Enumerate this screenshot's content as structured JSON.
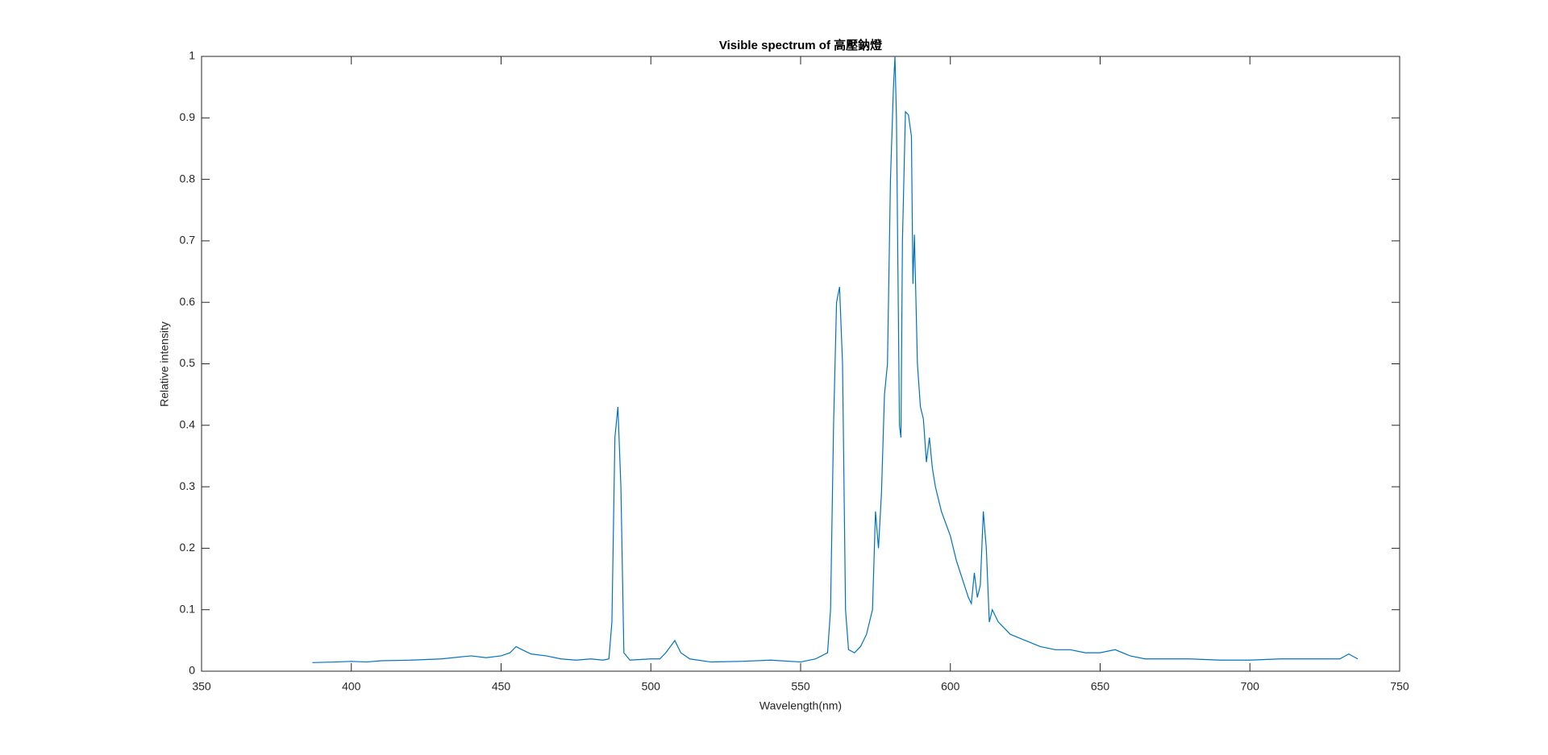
{
  "chart_data": {
    "type": "line",
    "title": "Visible spectrum of 高壓鈉燈",
    "x_label": "Wavelength(nm)",
    "y_label": "Relative intensity",
    "xlim": [
      350,
      750
    ],
    "xticks": [
      350,
      400,
      450,
      500,
      550,
      600,
      650,
      700,
      750
    ],
    "ylim": [
      0,
      1
    ],
    "yticks": [
      0,
      0.1,
      0.2,
      0.3,
      0.4,
      0.5,
      0.6,
      0.7,
      0.8,
      0.9,
      1
    ],
    "grid": false,
    "x": [
      387,
      395,
      400,
      405,
      410,
      420,
      430,
      440,
      445,
      450,
      453,
      455,
      457,
      460,
      465,
      470,
      475,
      480,
      484,
      486,
      487,
      488,
      489,
      490,
      491,
      493,
      500,
      503,
      505,
      508,
      510,
      513,
      520,
      530,
      540,
      550,
      555,
      559,
      560,
      561,
      562,
      563,
      564,
      565,
      566,
      568,
      570,
      572,
      574,
      575,
      576,
      577,
      578,
      579,
      580,
      581,
      581.5,
      582,
      583,
      583.5,
      584,
      585,
      586,
      587,
      587.5,
      588,
      589,
      590,
      591,
      592,
      593,
      594,
      595,
      597,
      600,
      602,
      604,
      606,
      607,
      608,
      609,
      610,
      611,
      612,
      613,
      614,
      616,
      620,
      625,
      630,
      635,
      640,
      645,
      650,
      655,
      660,
      665,
      670,
      680,
      690,
      700,
      710,
      720,
      730,
      733,
      736
    ],
    "series": [
      {
        "color": "#0072bd",
        "values": [
          0.014,
          0.015,
          0.016,
          0.015,
          0.017,
          0.018,
          0.02,
          0.025,
          0.022,
          0.025,
          0.03,
          0.04,
          0.035,
          0.028,
          0.025,
          0.02,
          0.018,
          0.02,
          0.018,
          0.02,
          0.08,
          0.38,
          0.43,
          0.3,
          0.03,
          0.018,
          0.02,
          0.02,
          0.03,
          0.05,
          0.03,
          0.02,
          0.015,
          0.016,
          0.018,
          0.015,
          0.02,
          0.03,
          0.1,
          0.4,
          0.6,
          0.625,
          0.5,
          0.1,
          0.035,
          0.03,
          0.04,
          0.06,
          0.1,
          0.26,
          0.2,
          0.29,
          0.45,
          0.5,
          0.8,
          0.95,
          1.0,
          0.9,
          0.4,
          0.38,
          0.7,
          0.91,
          0.905,
          0.87,
          0.63,
          0.71,
          0.5,
          0.43,
          0.41,
          0.34,
          0.38,
          0.33,
          0.3,
          0.26,
          0.22,
          0.18,
          0.15,
          0.12,
          0.11,
          0.16,
          0.12,
          0.14,
          0.26,
          0.2,
          0.08,
          0.1,
          0.08,
          0.06,
          0.05,
          0.04,
          0.035,
          0.035,
          0.03,
          0.03,
          0.035,
          0.025,
          0.02,
          0.02,
          0.02,
          0.018,
          0.018,
          0.02,
          0.02,
          0.02,
          0.028,
          0.02
        ]
      }
    ]
  }
}
